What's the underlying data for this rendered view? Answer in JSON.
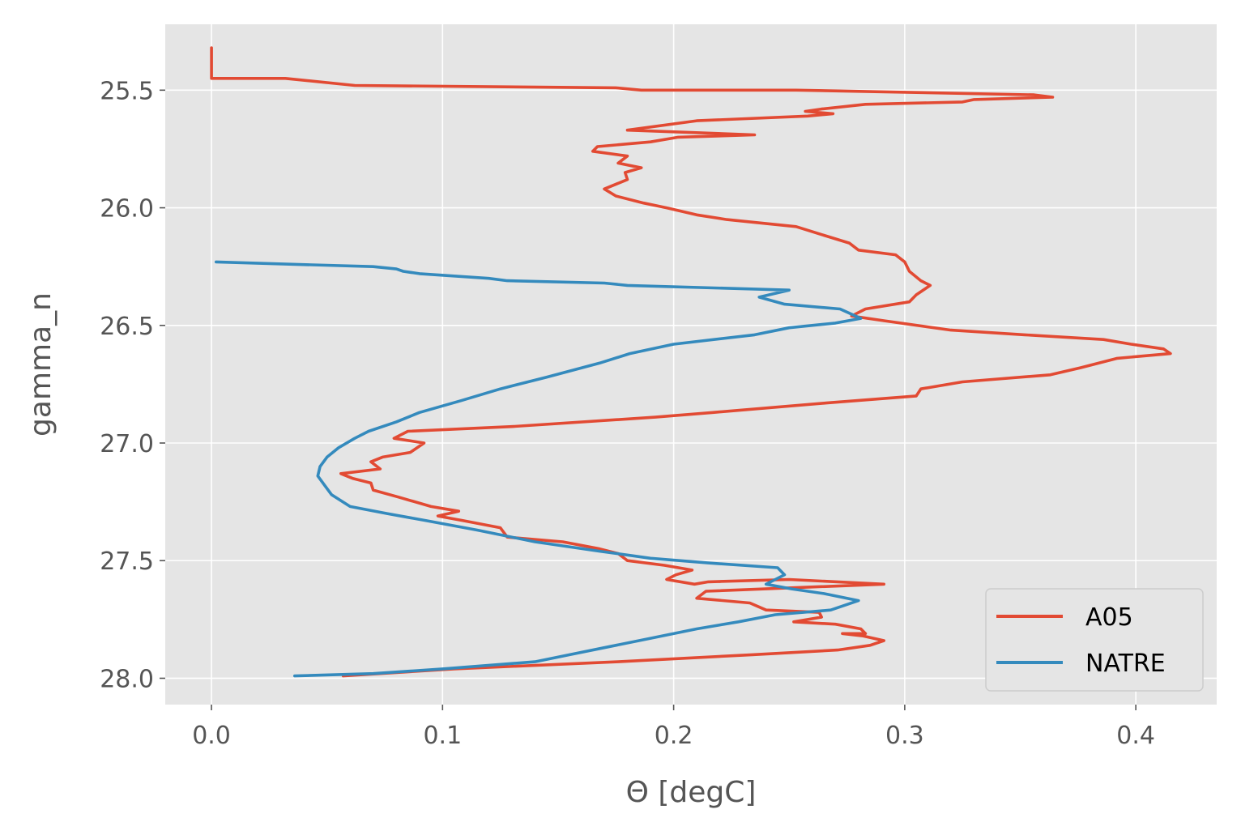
{
  "chart_data": {
    "type": "line",
    "xlabel": "Θ [degC]",
    "ylabel": "gamma_n",
    "xlim": [
      -0.02,
      0.435
    ],
    "ylim": [
      28.112,
      25.22
    ],
    "y_inverted": true,
    "grid": true,
    "background": "#e5e5e5",
    "legend_position": "lower-right",
    "xticks": [
      0.0,
      0.1,
      0.2,
      0.3,
      0.4
    ],
    "xtick_labels": [
      "0.0",
      "0.1",
      "0.2",
      "0.3",
      "0.4"
    ],
    "yticks": [
      25.5,
      26.0,
      26.5,
      27.0,
      27.5,
      28.0
    ],
    "ytick_labels": [
      "25.5",
      "26.0",
      "26.5",
      "27.0",
      "27.5",
      "28.0"
    ],
    "series": [
      {
        "name": "A05",
        "color": "#e24a33",
        "x": [
          0.0,
          0.0,
          0.0,
          0.032,
          0.062,
          0.175,
          0.186,
          0.253,
          0.356,
          0.364,
          0.33,
          0.325,
          0.283,
          0.264,
          0.257,
          0.269,
          0.258,
          0.21,
          0.18,
          0.235,
          0.202,
          0.19,
          0.167,
          0.165,
          0.18,
          0.176,
          0.186,
          0.179,
          0.18,
          0.17,
          0.175,
          0.187,
          0.197,
          0.21,
          0.223,
          0.253,
          0.266,
          0.276,
          0.28,
          0.296,
          0.3,
          0.302,
          0.307,
          0.311,
          0.305,
          0.302,
          0.283,
          0.277,
          0.291,
          0.32,
          0.352,
          0.386,
          0.398,
          0.412,
          0.415,
          0.392,
          0.376,
          0.363,
          0.325,
          0.307,
          0.305,
          0.266,
          0.217,
          0.192,
          0.13,
          0.085,
          0.079,
          0.092,
          0.086,
          0.074,
          0.069,
          0.073,
          0.056,
          0.061,
          0.069,
          0.07,
          0.081,
          0.095,
          0.107,
          0.098,
          0.109,
          0.125,
          0.128,
          0.152,
          0.168,
          0.176,
          0.18,
          0.196,
          0.208,
          0.201,
          0.197,
          0.209,
          0.215,
          0.25,
          0.291,
          0.214,
          0.21,
          0.233,
          0.24,
          0.263,
          0.264,
          0.252,
          0.27,
          0.281,
          0.283,
          0.273,
          0.282,
          0.291,
          0.285,
          0.271,
          0.234,
          0.176,
          0.105,
          0.057
        ],
        "y": [
          25.32,
          25.37,
          25.45,
          25.45,
          25.48,
          25.49,
          25.5,
          25.5,
          25.52,
          25.53,
          25.54,
          25.55,
          25.56,
          25.58,
          25.59,
          25.6,
          25.61,
          25.63,
          25.67,
          25.69,
          25.7,
          25.72,
          25.74,
          25.76,
          25.78,
          25.81,
          25.83,
          25.85,
          25.88,
          25.92,
          25.95,
          25.98,
          26.0,
          26.03,
          26.05,
          26.08,
          26.12,
          26.15,
          26.18,
          26.2,
          26.23,
          26.27,
          26.31,
          26.33,
          26.37,
          26.4,
          26.43,
          26.46,
          26.48,
          26.52,
          26.54,
          26.56,
          26.58,
          26.6,
          26.62,
          26.64,
          26.68,
          26.71,
          26.74,
          26.77,
          26.8,
          26.83,
          26.87,
          26.89,
          26.93,
          26.95,
          26.98,
          27.0,
          27.04,
          27.06,
          27.08,
          27.11,
          27.13,
          27.15,
          27.17,
          27.2,
          27.23,
          27.27,
          27.29,
          27.31,
          27.33,
          27.36,
          27.4,
          27.42,
          27.45,
          27.47,
          27.5,
          27.52,
          27.54,
          27.56,
          27.58,
          27.6,
          27.59,
          27.58,
          27.6,
          27.63,
          27.66,
          27.68,
          27.71,
          27.72,
          27.74,
          27.76,
          27.77,
          27.79,
          27.81,
          27.81,
          27.82,
          27.84,
          27.86,
          27.88,
          27.9,
          27.93,
          27.96,
          27.99
        ]
      },
      {
        "name": "NATRE",
        "color": "#348abd",
        "x": [
          0.002,
          0.035,
          0.07,
          0.08,
          0.083,
          0.09,
          0.12,
          0.128,
          0.17,
          0.18,
          0.25,
          0.237,
          0.248,
          0.272,
          0.281,
          0.27,
          0.25,
          0.235,
          0.2,
          0.181,
          0.168,
          0.145,
          0.125,
          0.108,
          0.09,
          0.08,
          0.068,
          0.062,
          0.055,
          0.05,
          0.047,
          0.046,
          0.049,
          0.052,
          0.06,
          0.076,
          0.093,
          0.115,
          0.14,
          0.168,
          0.19,
          0.215,
          0.245,
          0.248,
          0.24,
          0.251,
          0.265,
          0.28,
          0.268,
          0.244,
          0.228,
          0.21,
          0.19,
          0.17,
          0.155,
          0.14,
          0.1,
          0.07,
          0.036
        ],
        "y": [
          26.23,
          26.24,
          26.25,
          26.26,
          26.27,
          26.28,
          26.3,
          26.31,
          26.32,
          26.33,
          26.35,
          26.38,
          26.41,
          26.43,
          26.47,
          26.49,
          26.51,
          26.54,
          26.58,
          26.62,
          26.66,
          26.72,
          26.77,
          26.82,
          26.87,
          26.91,
          26.95,
          26.98,
          27.02,
          27.06,
          27.1,
          27.14,
          27.18,
          27.22,
          27.27,
          27.3,
          27.33,
          27.37,
          27.42,
          27.46,
          27.49,
          27.51,
          27.53,
          27.56,
          27.6,
          27.62,
          27.64,
          27.67,
          27.71,
          27.73,
          27.76,
          27.79,
          27.83,
          27.87,
          27.9,
          27.93,
          27.96,
          27.98,
          27.99
        ]
      }
    ]
  }
}
